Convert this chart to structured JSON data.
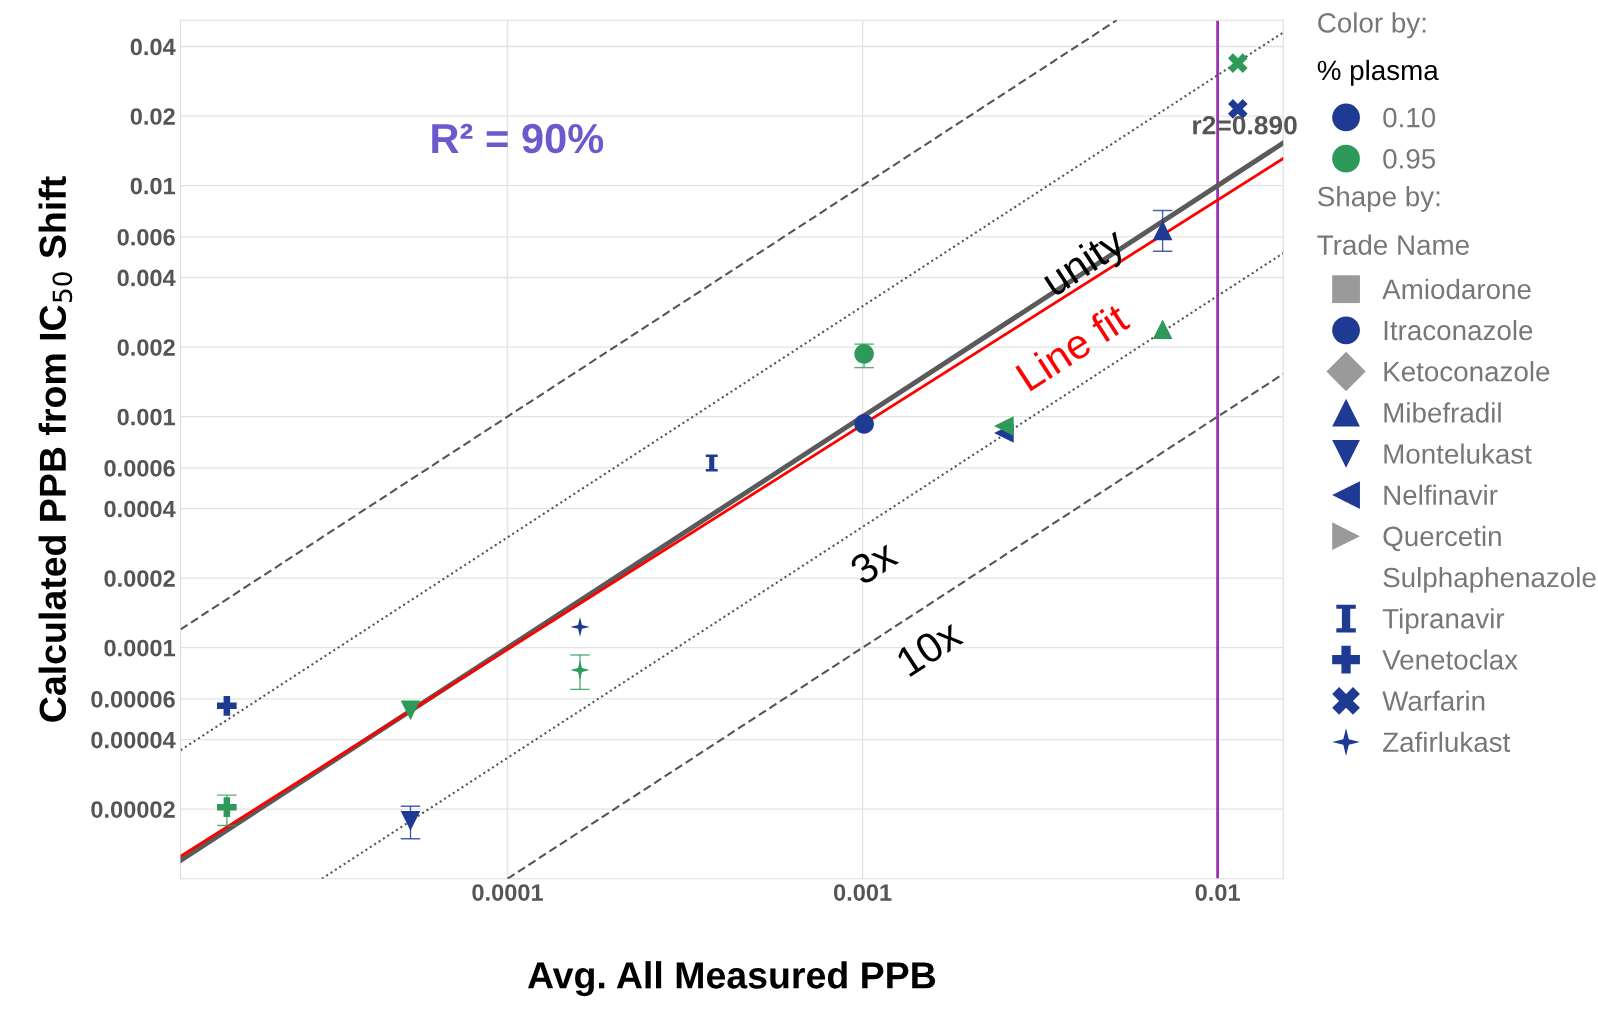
{
  "chart_data": {
    "type": "scatter",
    "xlabel": "Avg. All Measured PPB",
    "ylabel": "Calculated PPB from IC$_{50}$ Shift",
    "legend_title": "Color by:",
    "log": "xy",
    "grid": true,
    "legend": "right",
    "xlim": [
      1.2e-05,
      0.0153
    ],
    "ylim": [
      1e-05,
      0.052
    ],
    "xticks": [
      {
        "value": 0.0001,
        "label": "0.0001"
      },
      {
        "value": 0.001,
        "label": "0.001"
      },
      {
        "value": 0.01,
        "label": "0.01"
      }
    ],
    "yticks": [
      {
        "value": 0.04,
        "label": "0.04"
      },
      {
        "value": 0.02,
        "label": "0.02"
      },
      {
        "value": 0.01,
        "label": "0.01"
      },
      {
        "value": 0.006,
        "label": "0.006"
      },
      {
        "value": 0.004,
        "label": "0.004"
      },
      {
        "value": 0.002,
        "label": "0.002"
      },
      {
        "value": 0.001,
        "label": "0.001"
      },
      {
        "value": 0.0006,
        "label": "0.0006"
      },
      {
        "value": 0.0004,
        "label": "0.0004"
      },
      {
        "value": 0.0002,
        "label": "0.0002"
      },
      {
        "value": 0.0001,
        "label": "0.0001"
      },
      {
        "value": 6e-05,
        "label": "0.00006"
      },
      {
        "value": 4e-05,
        "label": "0.00004"
      },
      {
        "value": 2e-05,
        "label": "0.00002"
      }
    ],
    "ref_lines": [
      {
        "axis": "x",
        "value": 0.01,
        "color": "#9b30b0"
      }
    ],
    "annotations": [
      "% plasma",
      "Shape by:",
      "Trade Name",
      "R² = 90%",
      "r2=0.890",
      "unity",
      "Line fit",
      "3x",
      "10x"
    ],
    "series": [
      {
        "type": "line",
        "color": "#555555",
        "line_style": "dashed",
        "x": [
          1.2e-05,
          0.0052
        ],
        "values": [
          0.00012,
          0.052
        ]
      },
      {
        "type": "line",
        "color": "#555555",
        "line_style": "dotted",
        "x": [
          1.2e-05,
          0.0153
        ],
        "values": [
          3.6e-05,
          0.046
        ]
      },
      {
        "type": "line",
        "color": "#555555",
        "line_style": "dotted",
        "x": [
          3e-05,
          0.0153
        ],
        "values": [
          1e-05,
          0.0051
        ]
      },
      {
        "type": "line",
        "color": "#555555",
        "line_style": "dashed",
        "x": [
          0.0001,
          0.0153
        ],
        "values": [
          1e-05,
          0.00153
        ]
      },
      {
        "type": "line",
        "color": "#5a5a5a",
        "line_style": "solid",
        "x": [
          1.2e-05,
          0.0153
        ],
        "values": [
          1.2e-05,
          0.0153
        ]
      },
      {
        "type": "line",
        "color": "#ff0000",
        "line_style": "solid",
        "x": [
          1.2e-05,
          0.0153
        ],
        "values": [
          1.25e-05,
          0.0131
        ]
      },
      {
        "name": "0.10",
        "marker": "circle",
        "color": "#1f3a93"
      },
      {
        "name": "0.95",
        "marker": "circle",
        "color": "#2e9a5a"
      },
      {
        "name": "Amiodarone",
        "marker": "square"
      },
      {
        "name": "Itraconazole",
        "marker": "circle",
        "x": [
          0.00101,
          0.00101
        ],
        "values": [
          0.00093,
          0.00187
        ],
        "colors": [
          "#1f3a93",
          "#2e9a5a"
        ],
        "errors": [
          null,
          [
            0.00163,
            0.00206
          ]
        ]
      },
      {
        "name": "Ketoconazole",
        "marker": "diamond"
      },
      {
        "name": "Mibefradil",
        "marker": "triangle",
        "x": [
          0.007,
          0.007
        ],
        "values": [
          0.0064,
          0.00239
        ],
        "colors": [
          "#1f3a93",
          "#2e9a5a"
        ],
        "errors": [
          [
            0.0052,
            0.0078
          ],
          null
        ]
      },
      {
        "name": "Montelukast",
        "marker": "triangle_down",
        "x": [
          5.33e-05,
          5.33e-05
        ],
        "values": [
          1.78e-05,
          5.35e-05
        ],
        "colors": [
          "#1f3a93",
          "#2e9a5a"
        ],
        "errors": [
          [
            1.49e-05,
            2.06e-05
          ],
          null
        ]
      },
      {
        "name": "Nelfinavir",
        "marker": "triangle_left",
        "x": [
          0.0025,
          0.0025
        ],
        "values": [
          0.00085,
          0.00091
        ],
        "colors": [
          "#1f3a93",
          "#2e9a5a"
        ]
      },
      {
        "name": "Quercetin",
        "marker": "triangle_right"
      },
      {
        "name": "Sulphaphenazole",
        "marker": "dash"
      },
      {
        "name": "Tipranavir",
        "x": [
          0.000376
        ],
        "values": [
          0.00063
        ],
        "colors": [
          "#1f3a93"
        ]
      },
      {
        "name": "Venetoclax",
        "marker": "plus",
        "x": [
          1.62e-05,
          1.62e-05
        ],
        "values": [
          5.6e-05,
          2.04e-05
        ],
        "colors": [
          "#1f3a93",
          "#2e9a5a"
        ],
        "errors": [
          null,
          [
            1.7e-05,
            2.3e-05
          ]
        ]
      },
      {
        "name": "Warfarin",
        "marker": "cross",
        "x": [
          0.0114,
          0.0114
        ],
        "values": [
          0.0215,
          0.0339
        ],
        "colors": [
          "#1f3a93",
          "#2e9a5a"
        ]
      },
      {
        "name": "Zafirlukast",
        "marker": "star",
        "x": [
          0.00016,
          0.00016
        ],
        "values": [
          0.000123,
          8e-05
        ],
        "colors": [
          "#1f3a93",
          "#2e9a5a"
        ],
        "errors": [
          null,
          [
            6.6e-05,
            9.3e-05
          ]
        ]
      }
    ]
  }
}
